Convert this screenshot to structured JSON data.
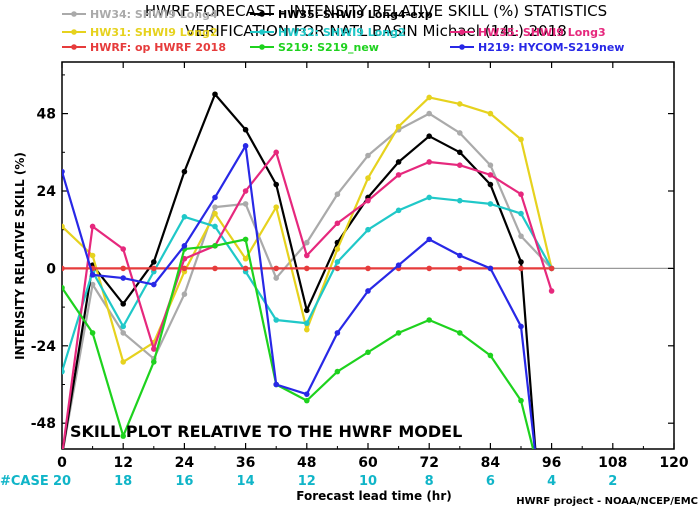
{
  "chart_data": {
    "type": "line",
    "title_line1": "HWRF FORECAST - INTENSITY RELATIVE SKILL (%) STATISTICS",
    "title_line2": "VERIFICATION FOR NATL BASIN Michael (14L) 2018",
    "xlabel": "Forecast lead time (hr)",
    "ylabel": "INTENSITY RELATIVE SKILL (%)",
    "annotation": "SKILL PLOT RELATIVE TO THE HWRF MODEL",
    "credit": "HWRF project - NOAA/NCEP/EMC",
    "xlim": [
      0,
      120
    ],
    "ylim": [
      -56,
      64
    ],
    "x_ticks": [
      0,
      12,
      24,
      36,
      48,
      60,
      72,
      84,
      96,
      108,
      120
    ],
    "x_tick_labels": [
      "0",
      "12",
      "24",
      "36",
      "48",
      "60",
      "72",
      "84",
      "96",
      "108",
      "120"
    ],
    "y_ticks": [
      -48,
      -24,
      0,
      24,
      48
    ],
    "y_tick_labels": [
      "-48",
      "-24",
      "0",
      "24",
      "48"
    ],
    "case_label": "#CASE",
    "case_color": "#10b5c8",
    "case_counts": [
      {
        "x": 0,
        "label": "20"
      },
      {
        "x": 12,
        "label": "18"
      },
      {
        "x": 24,
        "label": "16"
      },
      {
        "x": 36,
        "label": "14"
      },
      {
        "x": 48,
        "label": "12"
      },
      {
        "x": 60,
        "label": "10"
      },
      {
        "x": 72,
        "label": "8"
      },
      {
        "x": 84,
        "label": "6"
      },
      {
        "x": 96,
        "label": "4"
      },
      {
        "x": 108,
        "label": "2"
      }
    ],
    "zero_line_color": "#999999",
    "series": [
      {
        "name": "HW34: SHWI9 Long4",
        "color": "#aaaaaa",
        "x": [
          0,
          6,
          12,
          18,
          24,
          30,
          36,
          42,
          48,
          54,
          60,
          66,
          72,
          78,
          84,
          90,
          96
        ],
        "y": [
          -58,
          -5,
          -20,
          -28,
          -8,
          19,
          20,
          -3,
          8,
          23,
          35,
          43,
          48,
          42,
          32,
          10,
          0
        ]
      },
      {
        "name": "HW35: SHWI9 Long4-exp",
        "color": "#000000",
        "x": [
          0,
          6,
          12,
          18,
          24,
          30,
          36,
          42,
          48,
          54,
          60,
          66,
          72,
          78,
          84,
          90,
          93
        ],
        "y": [
          -58,
          1,
          -11,
          2,
          30,
          54,
          43,
          26,
          -13,
          8,
          22,
          33,
          41,
          36,
          26,
          2,
          -60
        ]
      },
      {
        "name": "HW31: SHWI9 Long2",
        "color": "#e6d21e",
        "x": [
          0,
          6,
          12,
          18,
          24,
          30,
          36,
          42,
          48,
          54,
          60,
          66,
          72,
          78,
          84,
          90,
          96
        ],
        "y": [
          13,
          4,
          -29,
          -23,
          -1,
          17,
          3,
          19,
          -19,
          6,
          28,
          44,
          53,
          51,
          48,
          40,
          0
        ]
      },
      {
        "name": "HW32: SHWI9 Long2",
        "color": "#20c8c8",
        "x": [
          0,
          6,
          12,
          18,
          24,
          30,
          36,
          42,
          48,
          54,
          60,
          66,
          72,
          78,
          84,
          90,
          96
        ],
        "y": [
          -32,
          -1,
          -18,
          -1,
          16,
          13,
          -1,
          -16,
          -17,
          2,
          12,
          18,
          22,
          21,
          20,
          17,
          0
        ]
      },
      {
        "name": "HW35: SHWI9 Long3",
        "color": "#e6287d",
        "x": [
          0,
          6,
          12,
          18,
          24,
          30,
          36,
          42,
          48,
          54,
          60,
          66,
          72,
          78,
          84,
          90,
          96
        ],
        "y": [
          -58,
          13,
          6,
          -25,
          3,
          7,
          24,
          36,
          4,
          14,
          21,
          29,
          33,
          32,
          29,
          23,
          -7
        ]
      },
      {
        "name": "HWRF: op HWRF 2018",
        "color": "#e63c3c",
        "x": [
          0,
          6,
          12,
          18,
          24,
          30,
          36,
          42,
          48,
          54,
          60,
          66,
          72,
          78,
          84,
          90,
          96
        ],
        "y": [
          0,
          0,
          0,
          0,
          0,
          0,
          0,
          0,
          0,
          0,
          0,
          0,
          0,
          0,
          0,
          0,
          0
        ]
      },
      {
        "name": "S219: S219_new",
        "color": "#1ed21e",
        "x": [
          0,
          6,
          12,
          18,
          24,
          30,
          36,
          42,
          48,
          54,
          60,
          66,
          72,
          78,
          84,
          90,
          93
        ],
        "y": [
          -6,
          -20,
          -52,
          -29,
          6,
          7,
          9,
          -36,
          -41,
          -32,
          -26,
          -20,
          -16,
          -20,
          -27,
          -41,
          -60
        ]
      },
      {
        "name": "H219: HYCOM-S219new",
        "color": "#2828e6",
        "x": [
          0,
          6,
          12,
          18,
          24,
          30,
          36,
          42,
          48,
          54,
          60,
          66,
          72,
          78,
          84,
          90,
          93
        ],
        "y": [
          30,
          -2,
          -3,
          -5,
          7,
          22,
          38,
          -36,
          -39,
          -20,
          -7,
          1,
          9,
          4,
          0,
          -18,
          -60
        ]
      }
    ],
    "legend": [
      {
        "label": "HW34: SHWI9 Long4",
        "color": "#aaaaaa"
      },
      {
        "label": "HW35: SHWI9 Long4-exp",
        "color": "#000000"
      },
      {
        "label": "HW31: SHWI9 Long2",
        "color": "#e6d21e"
      },
      {
        "label": "HW32: SHWI9 Long2",
        "color": "#20c8c8"
      },
      {
        "label": "HW35: SHWI9 Long3",
        "color": "#e6287d"
      },
      {
        "label": "HWRF: op HWRF 2018",
        "color": "#e63c3c"
      },
      {
        "label": "S219: S219_new",
        "color": "#1ed21e"
      },
      {
        "label": "H219: HYCOM-S219new",
        "color": "#2828e6"
      }
    ]
  }
}
